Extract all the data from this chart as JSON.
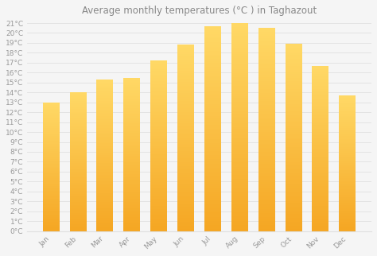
{
  "title": "Average monthly temperatures (°C ) in Taghazout",
  "months": [
    "Jan",
    "Feb",
    "Mar",
    "Apr",
    "May",
    "Jun",
    "Jul",
    "Aug",
    "Sep",
    "Oct",
    "Nov",
    "Dec"
  ],
  "values": [
    13.0,
    14.0,
    15.3,
    15.5,
    17.2,
    18.8,
    20.7,
    21.0,
    20.5,
    18.9,
    16.7,
    13.7
  ],
  "bar_color_bottom": "#F5A623",
  "bar_color_top": "#FFD966",
  "background_color": "#f5f5f5",
  "plot_bg_color": "#f5f5f5",
  "grid_color": "#e0e0e0",
  "tick_label_color": "#999999",
  "title_color": "#888888",
  "ylim": [
    0,
    21
  ],
  "ytick_step": 1,
  "title_fontsize": 8.5,
  "tick_fontsize": 6.5,
  "bar_width": 0.62
}
